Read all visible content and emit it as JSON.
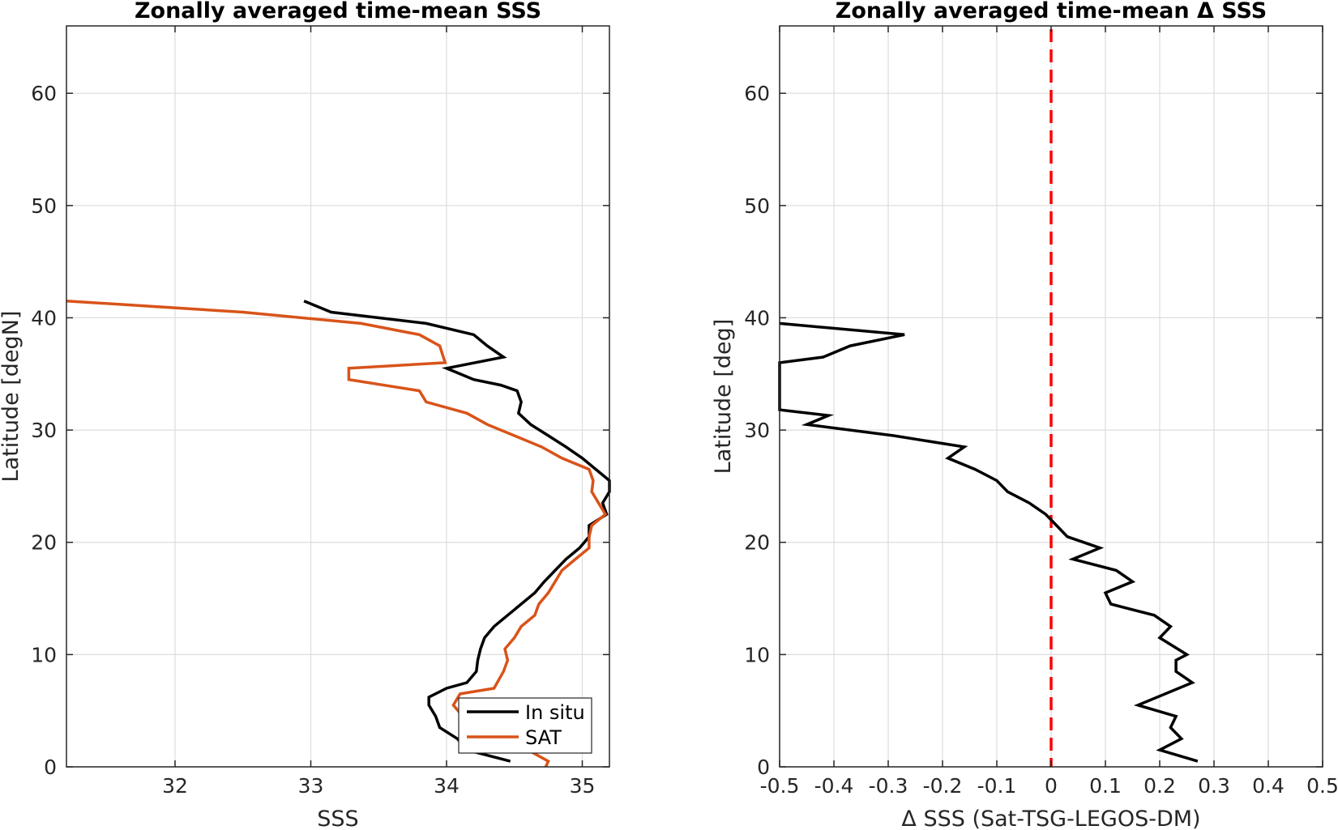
{
  "chart_data": [
    {
      "type": "line",
      "title": "Zonally averaged time-mean SSS",
      "xlabel": "SSS",
      "ylabel": "Latitude [degN]",
      "xlim": [
        31.2,
        35.2
      ],
      "ylim": [
        0,
        66
      ],
      "xticks": [
        32,
        33,
        34,
        35
      ],
      "xtick_labels": [
        "32",
        "33",
        "34",
        "35"
      ],
      "yticks": [
        0,
        10,
        20,
        30,
        40,
        50,
        60
      ],
      "ytick_labels": [
        "0",
        "10",
        "20",
        "30",
        "40",
        "50",
        "60"
      ],
      "grid": true,
      "legend_position": "bottom-right",
      "series": [
        {
          "name": "In situ",
          "color": "#000000",
          "points": [
            [
              34.47,
              0.5
            ],
            [
              34.15,
              1.5
            ],
            [
              34.08,
              2.5
            ],
            [
              33.95,
              3.5
            ],
            [
              33.92,
              4.5
            ],
            [
              33.87,
              5.5
            ],
            [
              33.87,
              6.2
            ],
            [
              34.0,
              7.0
            ],
            [
              34.15,
              7.5
            ],
            [
              34.22,
              8.5
            ],
            [
              34.23,
              9.5
            ],
            [
              34.25,
              10.5
            ],
            [
              34.28,
              11.5
            ],
            [
              34.35,
              12.5
            ],
            [
              34.45,
              13.5
            ],
            [
              34.55,
              14.5
            ],
            [
              34.65,
              15.5
            ],
            [
              34.72,
              16.5
            ],
            [
              34.8,
              17.5
            ],
            [
              34.88,
              18.5
            ],
            [
              34.98,
              19.5
            ],
            [
              35.05,
              20.5
            ],
            [
              35.05,
              21.5
            ],
            [
              35.18,
              22.5
            ],
            [
              35.15,
              23.5
            ],
            [
              35.2,
              24.5
            ],
            [
              35.2,
              25.5
            ],
            [
              35.1,
              26.5
            ],
            [
              35.0,
              27.5
            ],
            [
              34.88,
              28.5
            ],
            [
              34.75,
              29.5
            ],
            [
              34.62,
              30.5
            ],
            [
              34.53,
              31.5
            ],
            [
              34.55,
              32.5
            ],
            [
              34.52,
              33.5
            ],
            [
              34.4,
              34.0
            ],
            [
              34.2,
              34.5
            ],
            [
              34.0,
              35.5
            ],
            [
              34.42,
              36.5
            ],
            [
              34.3,
              37.5
            ],
            [
              34.2,
              38.5
            ],
            [
              33.85,
              39.5
            ],
            [
              33.15,
              40.5
            ],
            [
              33.05,
              41.0
            ],
            [
              32.95,
              41.5
            ]
          ]
        },
        {
          "name": "SAT",
          "color": "#d95319",
          "points": [
            [
              34.73,
              0.0
            ],
            [
              34.75,
              0.5
            ],
            [
              34.6,
              1.5
            ],
            [
              34.38,
              2.5
            ],
            [
              34.15,
              3.5
            ],
            [
              34.12,
              4.5
            ],
            [
              34.05,
              5.5
            ],
            [
              34.1,
              6.5
            ],
            [
              34.35,
              7.0
            ],
            [
              34.42,
              8.5
            ],
            [
              34.45,
              9.5
            ],
            [
              34.43,
              10.5
            ],
            [
              34.5,
              11.5
            ],
            [
              34.55,
              12.5
            ],
            [
              34.65,
              13.5
            ],
            [
              34.68,
              14.5
            ],
            [
              34.75,
              15.5
            ],
            [
              34.8,
              16.5
            ],
            [
              34.85,
              17.5
            ],
            [
              34.95,
              18.5
            ],
            [
              35.05,
              19.5
            ],
            [
              35.05,
              20.5
            ],
            [
              35.07,
              21.5
            ],
            [
              35.17,
              22.5
            ],
            [
              35.12,
              23.5
            ],
            [
              35.07,
              24.5
            ],
            [
              35.08,
              25.5
            ],
            [
              35.05,
              26.5
            ],
            [
              34.85,
              27.5
            ],
            [
              34.7,
              28.5
            ],
            [
              34.5,
              29.5
            ],
            [
              34.3,
              30.5
            ],
            [
              34.15,
              31.5
            ],
            [
              33.85,
              32.5
            ],
            [
              33.8,
              33.5
            ],
            [
              33.28,
              34.5
            ],
            [
              33.28,
              35.5
            ],
            [
              33.99,
              36.0
            ],
            [
              33.95,
              37.5
            ],
            [
              33.8,
              38.5
            ],
            [
              33.37,
              39.5
            ],
            [
              32.5,
              40.5
            ],
            [
              31.2,
              41.5
            ]
          ]
        }
      ]
    },
    {
      "type": "line",
      "title": "Zonally averaged time-mean Δ SSS",
      "xlabel": "Δ SSS (Sat-TSG-LEGOS-DM)",
      "ylabel": "Latitude [deg]",
      "xlim": [
        -0.5,
        0.5
      ],
      "ylim": [
        0,
        66
      ],
      "xticks": [
        -0.5,
        -0.4,
        -0.3,
        -0.2,
        -0.1,
        0,
        0.1,
        0.2,
        0.3,
        0.4,
        0.5
      ],
      "xtick_labels": [
        "-0.5",
        "-0.4",
        "-0.3",
        "-0.2",
        "-0.1",
        "0",
        "0.1",
        "0.2",
        "0.3",
        "0.4",
        "0.5"
      ],
      "yticks": [
        0,
        10,
        20,
        30,
        40,
        50,
        60
      ],
      "ytick_labels": [
        "0",
        "10",
        "20",
        "30",
        "40",
        "50",
        "60"
      ],
      "grid": true,
      "reference_line": {
        "x": 0,
        "color": "#ff0000",
        "style": "dashed"
      },
      "series": [
        {
          "color": "#000000",
          "points": [
            [
              0.27,
              0.5
            ],
            [
              0.2,
              1.5
            ],
            [
              0.24,
              2.5
            ],
            [
              0.22,
              3.5
            ],
            [
              0.23,
              4.5
            ],
            [
              0.16,
              5.5
            ],
            [
              0.26,
              7.5
            ],
            [
              0.23,
              8.5
            ],
            [
              0.23,
              9.5
            ],
            [
              0.25,
              10.0
            ],
            [
              0.2,
              11.5
            ],
            [
              0.22,
              12.5
            ],
            [
              0.19,
              13.5
            ],
            [
              0.11,
              14.5
            ],
            [
              0.1,
              15.5
            ],
            [
              0.15,
              16.5
            ],
            [
              0.12,
              17.5
            ],
            [
              0.04,
              18.5
            ],
            [
              0.09,
              19.5
            ],
            [
              0.03,
              20.5
            ],
            [
              0.0,
              22.0
            ],
            [
              -0.01,
              22.5
            ],
            [
              -0.04,
              23.5
            ],
            [
              -0.08,
              24.5
            ],
            [
              -0.1,
              25.5
            ],
            [
              -0.14,
              26.5
            ],
            [
              -0.19,
              27.5
            ],
            [
              -0.16,
              28.5
            ],
            [
              -0.29,
              29.5
            ],
            [
              -0.45,
              30.5
            ],
            [
              -0.41,
              31.3
            ],
            [
              -0.5,
              31.8
            ],
            [
              -0.5,
              36.0
            ],
            [
              -0.42,
              36.5
            ],
            [
              -0.37,
              37.5
            ],
            [
              -0.27,
              38.5
            ],
            [
              -0.5,
              39.5
            ]
          ]
        }
      ]
    }
  ],
  "legend": {
    "items": [
      {
        "label": "In situ",
        "color": "#000000"
      },
      {
        "label": "SAT",
        "color": "#d95319"
      }
    ]
  }
}
